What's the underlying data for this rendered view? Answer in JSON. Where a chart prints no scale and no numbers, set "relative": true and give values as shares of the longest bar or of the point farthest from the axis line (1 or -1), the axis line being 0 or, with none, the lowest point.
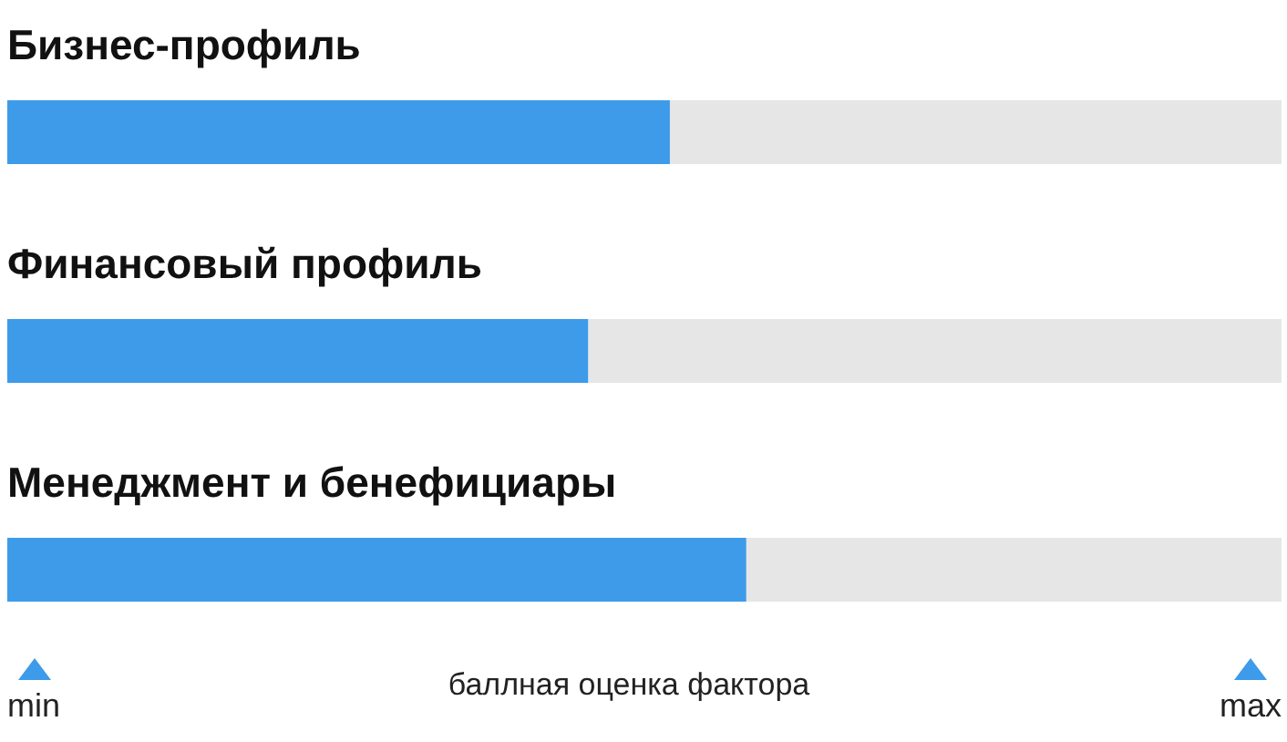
{
  "chart_data": {
    "type": "bar",
    "orientation": "horizontal",
    "relative": true,
    "stacked": true,
    "categories": [
      "Бизнес-профиль",
      "Финансовый профиль",
      "Менеджмент и бенефициары"
    ],
    "series": [
      {
        "color": "#3d9be9",
        "values": [
          0.52,
          0.456,
          0.58
        ]
      },
      {
        "color": "#e6e6e6",
        "values": [
          0.48,
          0.544,
          0.42
        ]
      }
    ],
    "xlabel": "баллная оценка фактора",
    "annotations": [
      "min",
      "max"
    ]
  }
}
